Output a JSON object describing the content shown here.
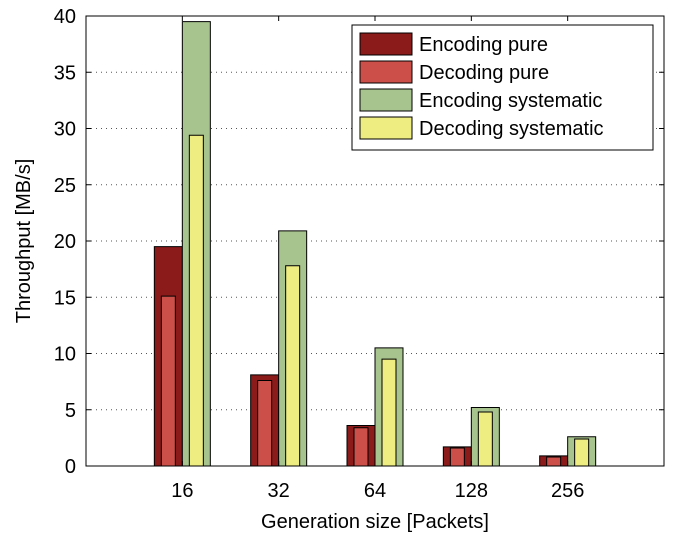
{
  "chart_data": {
    "type": "bar",
    "title": "",
    "xlabel": "Generation size [Packets]",
    "ylabel": "Throughput [MB/s]",
    "categories": [
      "16",
      "32",
      "64",
      "128",
      "256"
    ],
    "ylim": [
      0,
      40
    ],
    "yticks": [
      0,
      5,
      10,
      15,
      20,
      25,
      30,
      35,
      40
    ],
    "grid": true,
    "legend_position": "top-right",
    "series": [
      {
        "name": "Encoding pure",
        "color": "#8b1a1a",
        "values": [
          19.5,
          8.1,
          3.6,
          1.7,
          0.9
        ]
      },
      {
        "name": "Decoding pure",
        "color": "#cd4f49",
        "values": [
          15.1,
          7.6,
          3.4,
          1.6,
          0.8
        ]
      },
      {
        "name": "Encoding systematic",
        "color": "#a8c48e",
        "values": [
          39.5,
          20.9,
          10.5,
          5.2,
          2.6
        ]
      },
      {
        "name": "Decoding systematic",
        "color": "#eded82",
        "values": [
          29.4,
          17.8,
          9.5,
          4.8,
          2.4
        ]
      }
    ]
  }
}
